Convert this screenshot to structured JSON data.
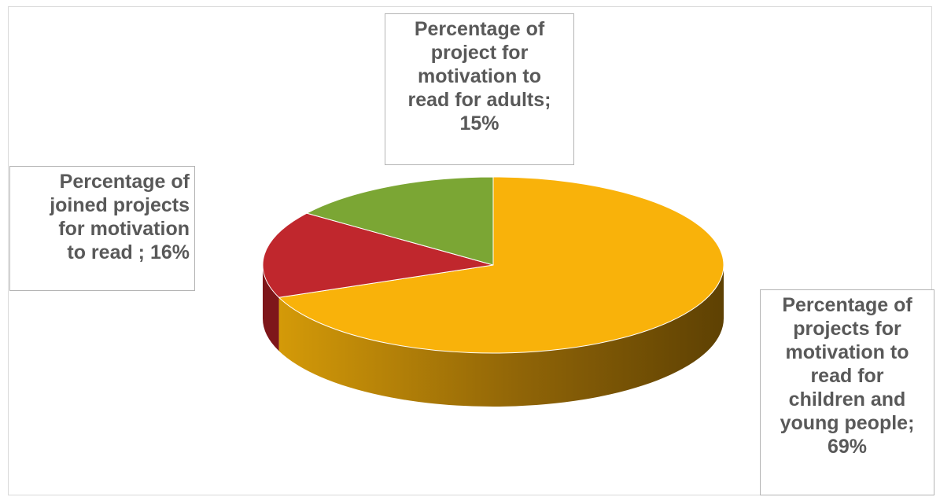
{
  "chart_data": {
    "type": "pie",
    "style": "3d",
    "slices": [
      {
        "name": "Percentage of projects for motivation to read for children and young people",
        "value": 69,
        "color": "#F9B20A",
        "side_color": "#A67700"
      },
      {
        "name": "Percentage of joined projects for motivation to read ",
        "value": 16,
        "color": "#C0272D",
        "side_color": "#7E161A"
      },
      {
        "name": "Percentage of project for motivation to read for adults",
        "value": 15,
        "color": "#7BA634",
        "side_color": "#4E6B1F"
      }
    ],
    "data_labels": {
      "children": [
        "Percentage of",
        "projects for",
        "motivation to",
        "read for",
        "children and",
        "young people;",
        "69%"
      ],
      "joined": [
        "Percentage of",
        "joined projects",
        "for motivation",
        "to read ; 16%"
      ],
      "adults": [
        "Percentage of",
        "project for",
        "motivation to",
        "read for adults;",
        "15%"
      ]
    },
    "legend": "none"
  }
}
